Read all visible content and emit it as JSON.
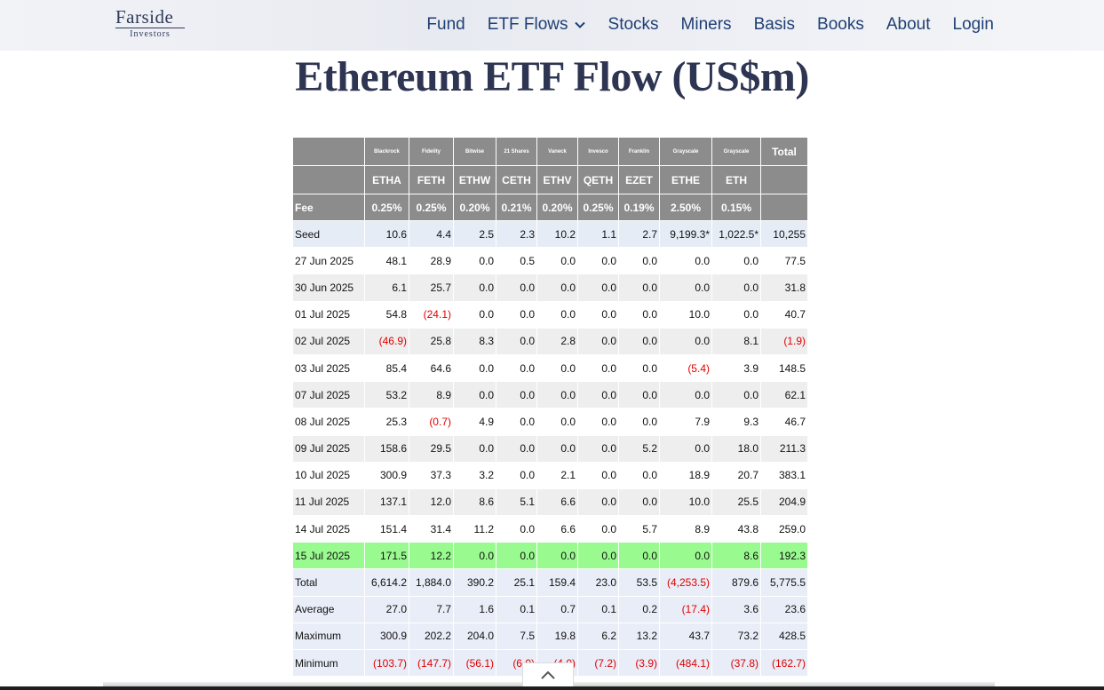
{
  "nav": {
    "logo_main": "Farside",
    "logo_sub": "Investors",
    "items": [
      "Fund",
      "ETF Flows",
      "Stocks",
      "Miners",
      "Basis",
      "Books",
      "About",
      "Login"
    ]
  },
  "page_title": "Ethereum ETF Flow (US$m)",
  "table": {
    "issuers": [
      "",
      "Blackrock",
      "Fidelity",
      "Bitwise",
      "21 Shares",
      "Vaneck",
      "Invesco",
      "Franklin",
      "Grayscale",
      "Grayscale",
      "Total"
    ],
    "tickers": [
      "",
      "ETHA",
      "FETH",
      "ETHW",
      "CETH",
      "ETHV",
      "QETH",
      "EZET",
      "ETHE",
      "ETH",
      ""
    ],
    "fees": [
      "Fee",
      "0.25%",
      "0.25%",
      "0.20%",
      "0.21%",
      "0.20%",
      "0.25%",
      "0.19%",
      "2.50%",
      "0.15%",
      ""
    ],
    "rows": [
      [
        "Seed",
        "10.6",
        "4.4",
        "2.5",
        "2.3",
        "10.2",
        "1.1",
        "2.7",
        "9,199.3*",
        "1,022.5*",
        "10,255"
      ],
      [
        "27 Jun 2025",
        "48.1",
        "28.9",
        "0.0",
        "0.5",
        "0.0",
        "0.0",
        "0.0",
        "0.0",
        "0.0",
        "77.5"
      ],
      [
        "30 Jun 2025",
        "6.1",
        "25.7",
        "0.0",
        "0.0",
        "0.0",
        "0.0",
        "0.0",
        "0.0",
        "0.0",
        "31.8"
      ],
      [
        "01 Jul 2025",
        "54.8",
        "(24.1)",
        "0.0",
        "0.0",
        "0.0",
        "0.0",
        "0.0",
        "10.0",
        "0.0",
        "40.7"
      ],
      [
        "02 Jul 2025",
        "(46.9)",
        "25.8",
        "8.3",
        "0.0",
        "2.8",
        "0.0",
        "0.0",
        "0.0",
        "8.1",
        "(1.9)"
      ],
      [
        "03 Jul 2025",
        "85.4",
        "64.6",
        "0.0",
        "0.0",
        "0.0",
        "0.0",
        "0.0",
        "(5.4)",
        "3.9",
        "148.5"
      ],
      [
        "07 Jul 2025",
        "53.2",
        "8.9",
        "0.0",
        "0.0",
        "0.0",
        "0.0",
        "0.0",
        "0.0",
        "0.0",
        "62.1"
      ],
      [
        "08 Jul 2025",
        "25.3",
        "(0.7)",
        "4.9",
        "0.0",
        "0.0",
        "0.0",
        "0.0",
        "7.9",
        "9.3",
        "46.7"
      ],
      [
        "09 Jul 2025",
        "158.6",
        "29.5",
        "0.0",
        "0.0",
        "0.0",
        "0.0",
        "5.2",
        "0.0",
        "18.0",
        "211.3"
      ],
      [
        "10 Jul 2025",
        "300.9",
        "37.3",
        "3.2",
        "0.0",
        "2.1",
        "0.0",
        "0.0",
        "18.9",
        "20.7",
        "383.1"
      ],
      [
        "11 Jul 2025",
        "137.1",
        "12.0",
        "8.6",
        "5.1",
        "6.6",
        "0.0",
        "0.0",
        "10.0",
        "25.5",
        "204.9"
      ],
      [
        "14 Jul 2025",
        "151.4",
        "31.4",
        "11.2",
        "0.0",
        "6.6",
        "0.0",
        "5.7",
        "8.9",
        "43.8",
        "259.0"
      ],
      [
        "15 Jul 2025",
        "171.5",
        "12.2",
        "0.0",
        "0.0",
        "0.0",
        "0.0",
        "0.0",
        "0.0",
        "8.6",
        "192.3"
      ],
      [
        "Total",
        "6,614.2",
        "1,884.0",
        "390.2",
        "25.1",
        "159.4",
        "23.0",
        "53.5",
        "(4,253.5)",
        "879.6",
        "5,775.5"
      ],
      [
        "Average",
        "27.0",
        "7.7",
        "1.6",
        "0.1",
        "0.7",
        "0.1",
        "0.2",
        "(17.4)",
        "3.6",
        "23.6"
      ],
      [
        "Maximum",
        "300.9",
        "202.2",
        "204.0",
        "7.5",
        "19.8",
        "6.2",
        "13.2",
        "43.7",
        "73.2",
        "428.5"
      ],
      [
        "Minimum",
        "(103.7)",
        "(147.7)",
        "(56.1)",
        "(6.0)",
        "(4.0)",
        "(7.2)",
        "(3.9)",
        "(484.1)",
        "(37.8)",
        "(162.7)"
      ]
    ]
  },
  "colors": {
    "header_bg": "#8c8c8c",
    "negative": "#e00000",
    "highlight_row": "#99fb8f"
  },
  "icons": {
    "nav_dropdown": "chevron-down-icon",
    "scroll_top": "chevron-up-icon"
  }
}
